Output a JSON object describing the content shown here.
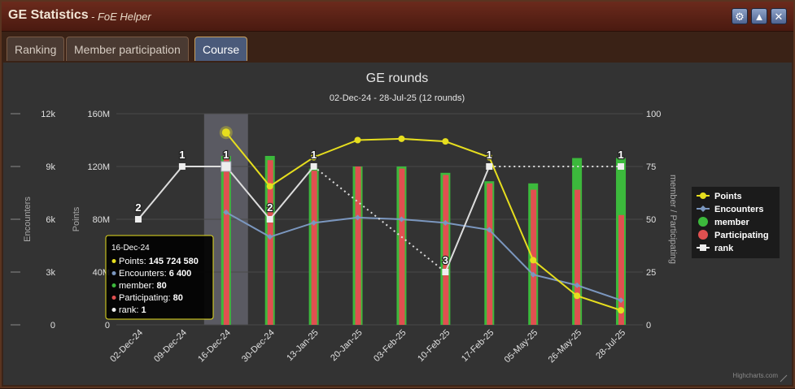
{
  "window": {
    "title": "GE Statistics",
    "subtitle": "- FoE Helper",
    "buttons": [
      {
        "icon": "gear-icon",
        "glyph": "⚙"
      },
      {
        "icon": "minimize-icon",
        "glyph": "▲"
      },
      {
        "icon": "close-icon",
        "glyph": "✕"
      }
    ]
  },
  "tabs": [
    {
      "label": "Ranking",
      "active": false
    },
    {
      "label": "Member participation",
      "active": false
    },
    {
      "label": "Course",
      "active": true
    }
  ],
  "credit": "Highcharts.com",
  "tooltip": {
    "date": "16-Dec-24",
    "rows": [
      {
        "label": "Points: ",
        "value": "145 724 580",
        "color": "#e6de1e"
      },
      {
        "label": "Encounters: ",
        "value": "6 400",
        "color": "#7b97bf"
      },
      {
        "label": "member: ",
        "value": "80",
        "color": "#3cb93c"
      },
      {
        "label": "Participating: ",
        "value": "80",
        "color": "#e05050"
      },
      {
        "label": "rank: ",
        "value": "1",
        "color": "#eeeeee"
      }
    ]
  },
  "chart_data": {
    "type": "bar",
    "title": "GE rounds",
    "subtitle": "02-Dec-24 - 28-Jul-25 (12 rounds)",
    "categories": [
      "02-Dec-24",
      "09-Dec-24",
      "16-Dec-24",
      "30-Dec-24",
      "13-Jan-25",
      "20-Jan-25",
      "03-Feb-25",
      "10-Feb-25",
      "17-Feb-25",
      "05-May-25",
      "26-May-25",
      "28-Jul-25"
    ],
    "highlighted_category": "16-Dec-24",
    "axes": {
      "encounters": {
        "label": "Encounters",
        "range": [
          0,
          12000
        ],
        "ticks": [
          "0",
          "3k",
          "6k",
          "9k",
          "12k"
        ]
      },
      "points": {
        "label": "Points",
        "range": [
          0,
          160000000
        ],
        "ticks": [
          "0",
          "40M",
          "80M",
          "120M",
          "160M"
        ]
      },
      "right": {
        "label": "member / Participating",
        "range": [
          0,
          100
        ],
        "ticks": [
          "0",
          "25",
          "50",
          "75",
          "100"
        ]
      }
    },
    "legend_position": "right",
    "series": [
      {
        "name": "Points",
        "type": "line",
        "axis": "points",
        "color": "#e6de1e",
        "values": [
          null,
          null,
          145724580,
          105000000,
          127000000,
          140000000,
          141000000,
          139000000,
          127000000,
          49000000,
          22000000,
          11000000
        ]
      },
      {
        "name": "Encounters",
        "type": "line",
        "axis": "encounters",
        "color": "#7b97bf",
        "values": [
          null,
          null,
          6400,
          5000,
          5800,
          6100,
          6000,
          5800,
          5400,
          2850,
          2250,
          1400
        ]
      },
      {
        "name": "member",
        "type": "column",
        "axis": "right",
        "color": "#3cb93c",
        "values": [
          null,
          null,
          80,
          80,
          74,
          75,
          75,
          72,
          68,
          67,
          79,
          79
        ]
      },
      {
        "name": "Participating",
        "type": "column",
        "axis": "right",
        "color": "#e05050",
        "values": [
          null,
          null,
          80,
          78,
          73,
          75,
          74,
          71,
          67,
          64,
          64,
          52
        ]
      },
      {
        "name": "rank",
        "type": "line",
        "axis": "right",
        "color": "#eeeeee",
        "values": [
          50,
          75,
          75,
          50,
          75,
          null,
          null,
          25,
          75,
          null,
          null,
          75
        ],
        "labels": [
          "2",
          "1",
          "1",
          "2",
          "1",
          "",
          "",
          "3",
          "1",
          "",
          "",
          "1"
        ]
      }
    ]
  }
}
